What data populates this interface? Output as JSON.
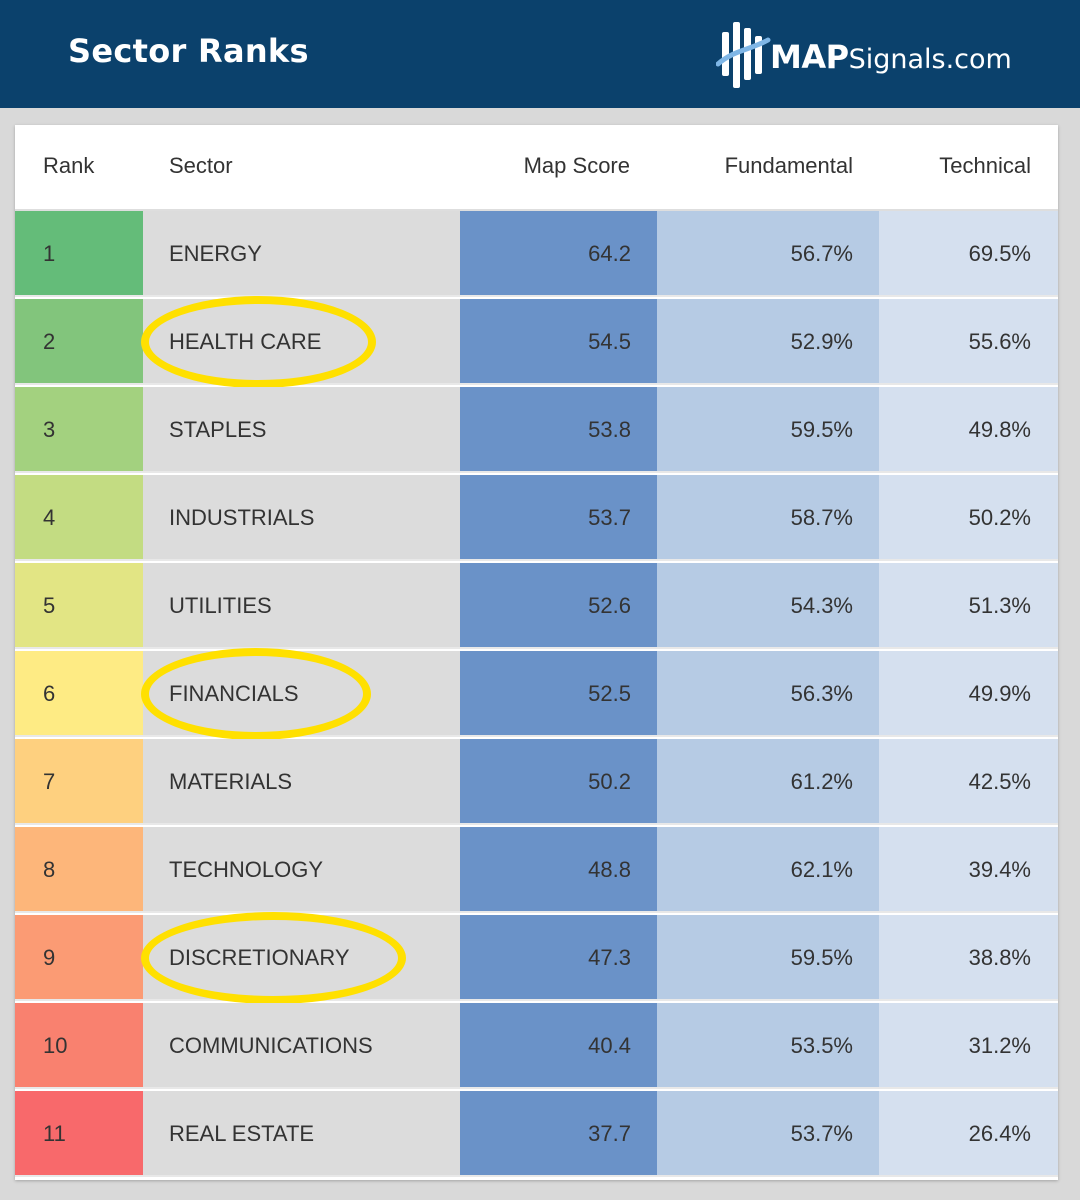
{
  "header": {
    "title": "Sector Ranks",
    "logo_bold": "MAP",
    "logo_light": "Signals.com",
    "background": "#0b416c"
  },
  "table": {
    "columns": [
      "Rank",
      "Sector",
      "Map Score",
      "Fundamental",
      "Technical"
    ],
    "rows": [
      {
        "rank": "1",
        "sector": "ENERGY",
        "map_score": "64.2",
        "fundamental": "56.7%",
        "technical": "69.5%",
        "rank_color": "#64bc79",
        "highlighted": false
      },
      {
        "rank": "2",
        "sector": "HEALTH CARE",
        "map_score": "54.5",
        "fundamental": "52.9%",
        "technical": "55.6%",
        "rank_color": "#82c57c",
        "highlighted": true
      },
      {
        "rank": "3",
        "sector": "STAPLES",
        "map_score": "53.8",
        "fundamental": "59.5%",
        "technical": "49.8%",
        "rank_color": "#a3d17f",
        "highlighted": false
      },
      {
        "rank": "4",
        "sector": "INDUSTRIALS",
        "map_score": "53.7",
        "fundamental": "58.7%",
        "technical": "50.2%",
        "rank_color": "#c3dc82",
        "highlighted": false
      },
      {
        "rank": "5",
        "sector": "UTILITIES",
        "map_score": "52.6",
        "fundamental": "54.3%",
        "technical": "51.3%",
        "rank_color": "#e2e584",
        "highlighted": false
      },
      {
        "rank": "6",
        "sector": "FINANCIALS",
        "map_score": "52.5",
        "fundamental": "56.3%",
        "technical": "49.9%",
        "rank_color": "#feeb84",
        "highlighted": true
      },
      {
        "rank": "7",
        "sector": "MATERIALS",
        "map_score": "50.2",
        "fundamental": "61.2%",
        "technical": "42.5%",
        "rank_color": "#fed07f",
        "highlighted": false
      },
      {
        "rank": "8",
        "sector": "TECHNOLOGY",
        "map_score": "48.8",
        "fundamental": "62.1%",
        "technical": "39.4%",
        "rank_color": "#fdb67a",
        "highlighted": false
      },
      {
        "rank": "9",
        "sector": "DISCRETIONARY",
        "map_score": "47.3",
        "fundamental": "59.5%",
        "technical": "38.8%",
        "rank_color": "#fb9b74",
        "highlighted": true
      },
      {
        "rank": "10",
        "sector": "COMMUNICATIONS",
        "map_score": "40.4",
        "fundamental": "53.5%",
        "technical": "31.2%",
        "rank_color": "#f9816f",
        "highlighted": false
      },
      {
        "rank": "11",
        "sector": "REAL ESTATE",
        "map_score": "37.7",
        "fundamental": "53.7%",
        "technical": "26.4%",
        "rank_color": "#f8696b",
        "highlighted": false
      }
    ],
    "colors": {
      "sector_bg": "#dcdcdc",
      "map_score_bg": "#6a92c8",
      "fundamental_bg": "#b6cbe4",
      "technical_bg": "#d5e0ef",
      "highlight_ring": "#ffe000"
    }
  }
}
